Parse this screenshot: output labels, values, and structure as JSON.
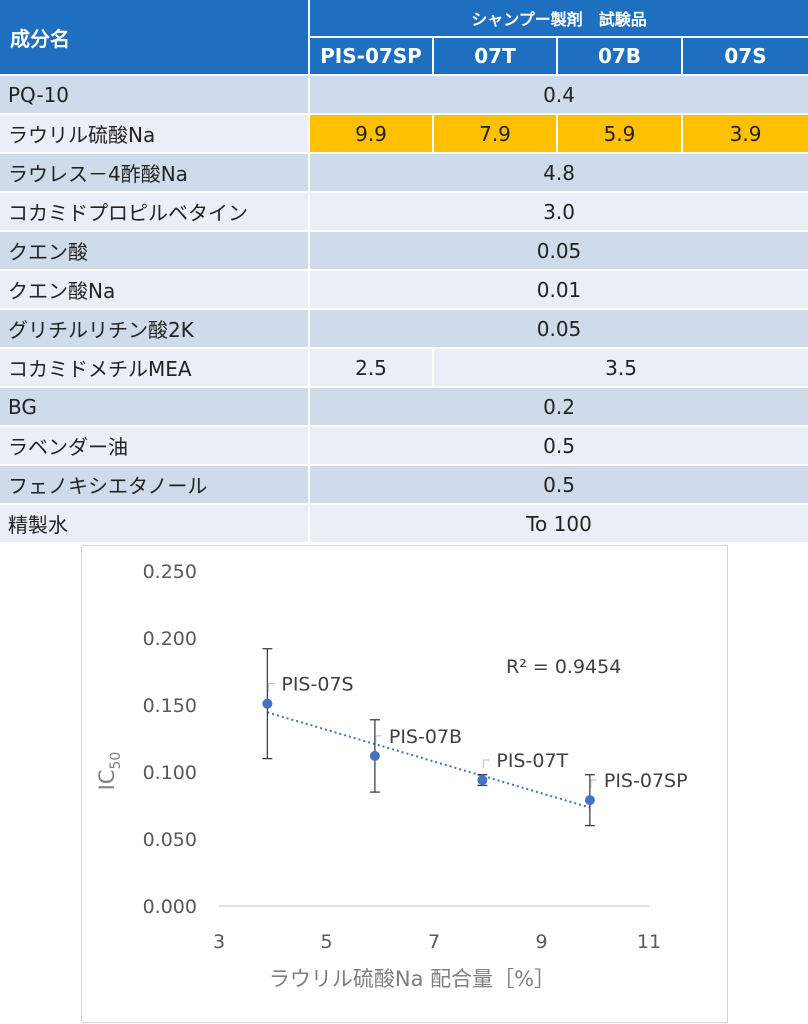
{
  "table": {
    "corner": "成分名",
    "group": "シャンプー製剤　試験品",
    "columns": [
      "PIS-07SP",
      "07T",
      "07B",
      "07S"
    ],
    "rows": [
      {
        "name": "PQ-10",
        "value": "0.4"
      },
      {
        "name": "ラウリル硫酸Na",
        "values": [
          "9.9",
          "7.9",
          "5.9",
          "3.9"
        ]
      },
      {
        "name": "ラウレス－4酢酸Na",
        "value": "4.8"
      },
      {
        "name": "コカミドプロピルベタイン",
        "value": "3.0"
      },
      {
        "name": "クエン酸",
        "value": "0.05"
      },
      {
        "name": "クエン酸Na",
        "value": "0.01"
      },
      {
        "name": "グリチルリチン酸2K",
        "value": "0.05"
      },
      {
        "name": "コカミドメチルMEA",
        "first": "2.5",
        "rest": "3.5"
      },
      {
        "name": "BG",
        "value": "0.2"
      },
      {
        "name": "ラベンダー油",
        "value": "0.5"
      },
      {
        "name": "フェノキシエタノール",
        "value": "0.5"
      },
      {
        "name": "精製水",
        "value": "To 100"
      }
    ],
    "colors": {
      "header": "#1f6fc0",
      "highlight": "#ffc000",
      "row_a": "#cfdaea",
      "row_b": "#e9eef7"
    }
  },
  "chart_data": {
    "type": "scatter",
    "xlabel": "ラウリル硫酸Na 配合量［%］",
    "ylabel_main": "IC",
    "ylabel_sub": "50",
    "xlim": [
      3,
      11
    ],
    "ylim": [
      0,
      0.25
    ],
    "x_ticks": [
      "3",
      "5",
      "7",
      "9",
      "11"
    ],
    "y_ticks": [
      "0.000",
      "0.050",
      "0.100",
      "0.150",
      "0.200",
      "0.250"
    ],
    "points": [
      {
        "label": "PIS-07S",
        "x": 3.9,
        "y": 0.151,
        "err_low": 0.11,
        "err_high": 0.192
      },
      {
        "label": "PIS-07B",
        "x": 5.9,
        "y": 0.112,
        "err_low": 0.085,
        "err_high": 0.139
      },
      {
        "label": "PIS-07T",
        "x": 7.9,
        "y": 0.094,
        "err_low": 0.09,
        "err_high": 0.098
      },
      {
        "label": "PIS-07SP",
        "x": 9.9,
        "y": 0.079,
        "err_low": 0.06,
        "err_high": 0.098
      }
    ],
    "trendline": {
      "type": "linear",
      "x": [
        3.9,
        9.9
      ],
      "y": [
        0.1445,
        0.0735
      ],
      "style": "dotted"
    },
    "r2_text": "R² = 0.9454",
    "grid": false,
    "marker_color": "#4472c4"
  }
}
